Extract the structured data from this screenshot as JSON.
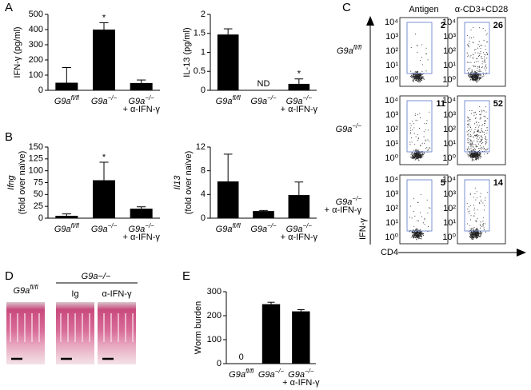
{
  "panel_labels": [
    "A",
    "B",
    "C",
    "D",
    "E"
  ],
  "chart_data": [
    {
      "type": "bar",
      "ylabel": [
        "IFN-γ (pg/ml)"
      ],
      "color": "#000000",
      "categories": [
        "G9afl/fl",
        "G9a−/−",
        "G9a−/−\n+ α-IFN-γ"
      ],
      "values": [
        50,
        400,
        48
      ],
      "errors": [
        100,
        45,
        20
      ],
      "significance": [
        null,
        "*",
        null
      ],
      "ylim": [
        0,
        500
      ],
      "yticks": [
        0,
        100,
        200,
        300,
        400,
        500
      ]
    },
    {
      "type": "bar",
      "ylabel": [
        "IL-13 (pg/ml)"
      ],
      "color": "#000000",
      "categories": [
        "G9afl/fl",
        "G9a−/−",
        "G9a−/−\n+ α-IFN-γ"
      ],
      "values": [
        1.47,
        null,
        0.17
      ],
      "errors": [
        0.15,
        null,
        0.13
      ],
      "value_labels": [
        null,
        "ND",
        null
      ],
      "significance": [
        null,
        null,
        "*"
      ],
      "ylim": [
        0,
        2
      ],
      "yticks": [
        0,
        0.5,
        1,
        1.5,
        2
      ]
    },
    {
      "type": "bar",
      "ylabel": [
        "Ifng",
        "(fold over naïve)"
      ],
      "color": "#000000",
      "categories": [
        "G9afl/fl",
        "G9a−/−",
        "G9a−/−\n+ α-IFN-γ"
      ],
      "values": [
        5,
        80,
        20
      ],
      "errors": [
        4,
        38,
        4
      ],
      "significance": [
        null,
        "*",
        null
      ],
      "ylim": [
        0,
        150
      ],
      "yticks": [
        0,
        25,
        50,
        75,
        100,
        125,
        150
      ]
    },
    {
      "type": "bar",
      "ylabel": [
        "Il13",
        "(fold over naïve)"
      ],
      "color": "#000000",
      "categories": [
        "G9afl/fl",
        "G9a−/−",
        "G9a−/−\n+ α-IFN-γ"
      ],
      "values": [
        6.2,
        1.2,
        3.9
      ],
      "errors": [
        4.6,
        0.1,
        2.2
      ],
      "ylim": [
        0,
        12
      ],
      "yticks": [
        0,
        4,
        8,
        12
      ]
    },
    {
      "type": "bar",
      "ylabel": [
        "Worm burden"
      ],
      "color": "#000000",
      "categories": [
        "G9afl/fl",
        "G9a−/−",
        "G9a−/−\n+ α-IFN-γ"
      ],
      "values": [
        0,
        248,
        218
      ],
      "errors": [
        0,
        8,
        7
      ],
      "ylim": [
        0,
        300
      ],
      "yticks": [
        0,
        100,
        200,
        300
      ]
    }
  ],
  "flow": {
    "columns": [
      "Antigen",
      "α-CD3+CD28"
    ],
    "rows": [
      "G9afl/fl",
      "G9a−/−",
      "G9a−/−\n+ α-IFN-γ"
    ],
    "percentages": [
      [
        2,
        26
      ],
      [
        11,
        52
      ],
      [
        5,
        14
      ]
    ],
    "xlabel": "CD4",
    "ylabel": "IFN-γ",
    "ticks": [
      "10⁴",
      "10³",
      "10²",
      "10¹",
      "10⁰"
    ]
  },
  "histology": {
    "group": "G9a−/−",
    "labels": [
      "G9afl/fl",
      "Ig",
      "α-IFN-γ"
    ]
  }
}
